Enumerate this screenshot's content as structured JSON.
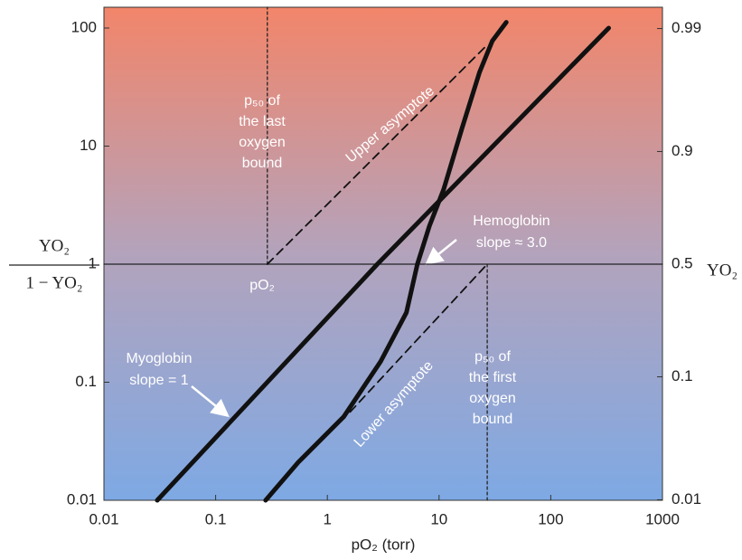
{
  "chart_data": {
    "type": "line",
    "xlabel": "pO₂ (torr)",
    "ylabel_top": "YO₂",
    "ylabel_bottom": "1 − YO₂",
    "y2label": "YO₂",
    "xscale": "log",
    "yscale": "log",
    "y2scale": "logit",
    "xlim": [
      0.01,
      1000
    ],
    "ylim": [
      0.01,
      150
    ],
    "y2lim": [
      0.0099,
      0.9934
    ],
    "xticks": [
      0.01,
      0.1,
      1,
      10,
      100,
      1000
    ],
    "yticks": [
      0.01,
      0.1,
      1,
      10,
      100
    ],
    "y2ticks": [
      0.01,
      0.1,
      0.5,
      0.9,
      0.99
    ],
    "series": [
      {
        "name": "Myoglobin",
        "color": "#111111",
        "style": "solid",
        "x": [
          0.03,
          2.8,
          330
        ],
        "values": [
          0.01,
          1,
          100
        ]
      },
      {
        "name": "Hemoglobin",
        "color": "#111111",
        "style": "solid",
        "x": [
          0.28,
          0.55,
          1.4,
          3,
          5.1,
          6.4,
          8.2,
          11,
          16,
          23,
          30,
          40
        ],
        "values": [
          0.01,
          0.021,
          0.051,
          0.15,
          0.39,
          1,
          2.1,
          4.3,
          14,
          42,
          78,
          112
        ]
      },
      {
        "name": "Upper asymptote",
        "color": "#111111",
        "style": "dashed",
        "x": [
          0.29,
          27
        ],
        "values": [
          1,
          72
        ]
      },
      {
        "name": "Lower asymptote",
        "color": "#111111",
        "style": "dashed",
        "x": [
          1.6,
          27
        ],
        "values": [
          0.056,
          1
        ]
      }
    ],
    "reference_lines": [
      {
        "x": [
          0.01,
          1000
        ],
        "values": [
          1,
          1
        ],
        "style": "solid"
      },
      {
        "x": [
          0.29,
          0.29
        ],
        "values": [
          1,
          150
        ],
        "style": "dotted"
      },
      {
        "x": [
          27,
          27
        ],
        "values": [
          0.01,
          1
        ],
        "style": "dotted"
      }
    ],
    "annotations": [
      {
        "lines": [
          "p₅₀ of",
          "the last",
          "oxygen",
          "bound"
        ]
      },
      {
        "lines": [
          "p₅₀ of",
          "the first",
          "oxygen",
          "bound"
        ]
      },
      {
        "lines": [
          "Hemoglobin",
          "slope ≈ 3.0"
        ]
      },
      {
        "lines": [
          "Myoglobin",
          "slope = 1"
        ]
      },
      {
        "lines": [
          "Upper asymptote"
        ]
      },
      {
        "lines": [
          "Lower asymptote"
        ]
      },
      {
        "lines": [
          "pO₂"
        ]
      }
    ]
  }
}
